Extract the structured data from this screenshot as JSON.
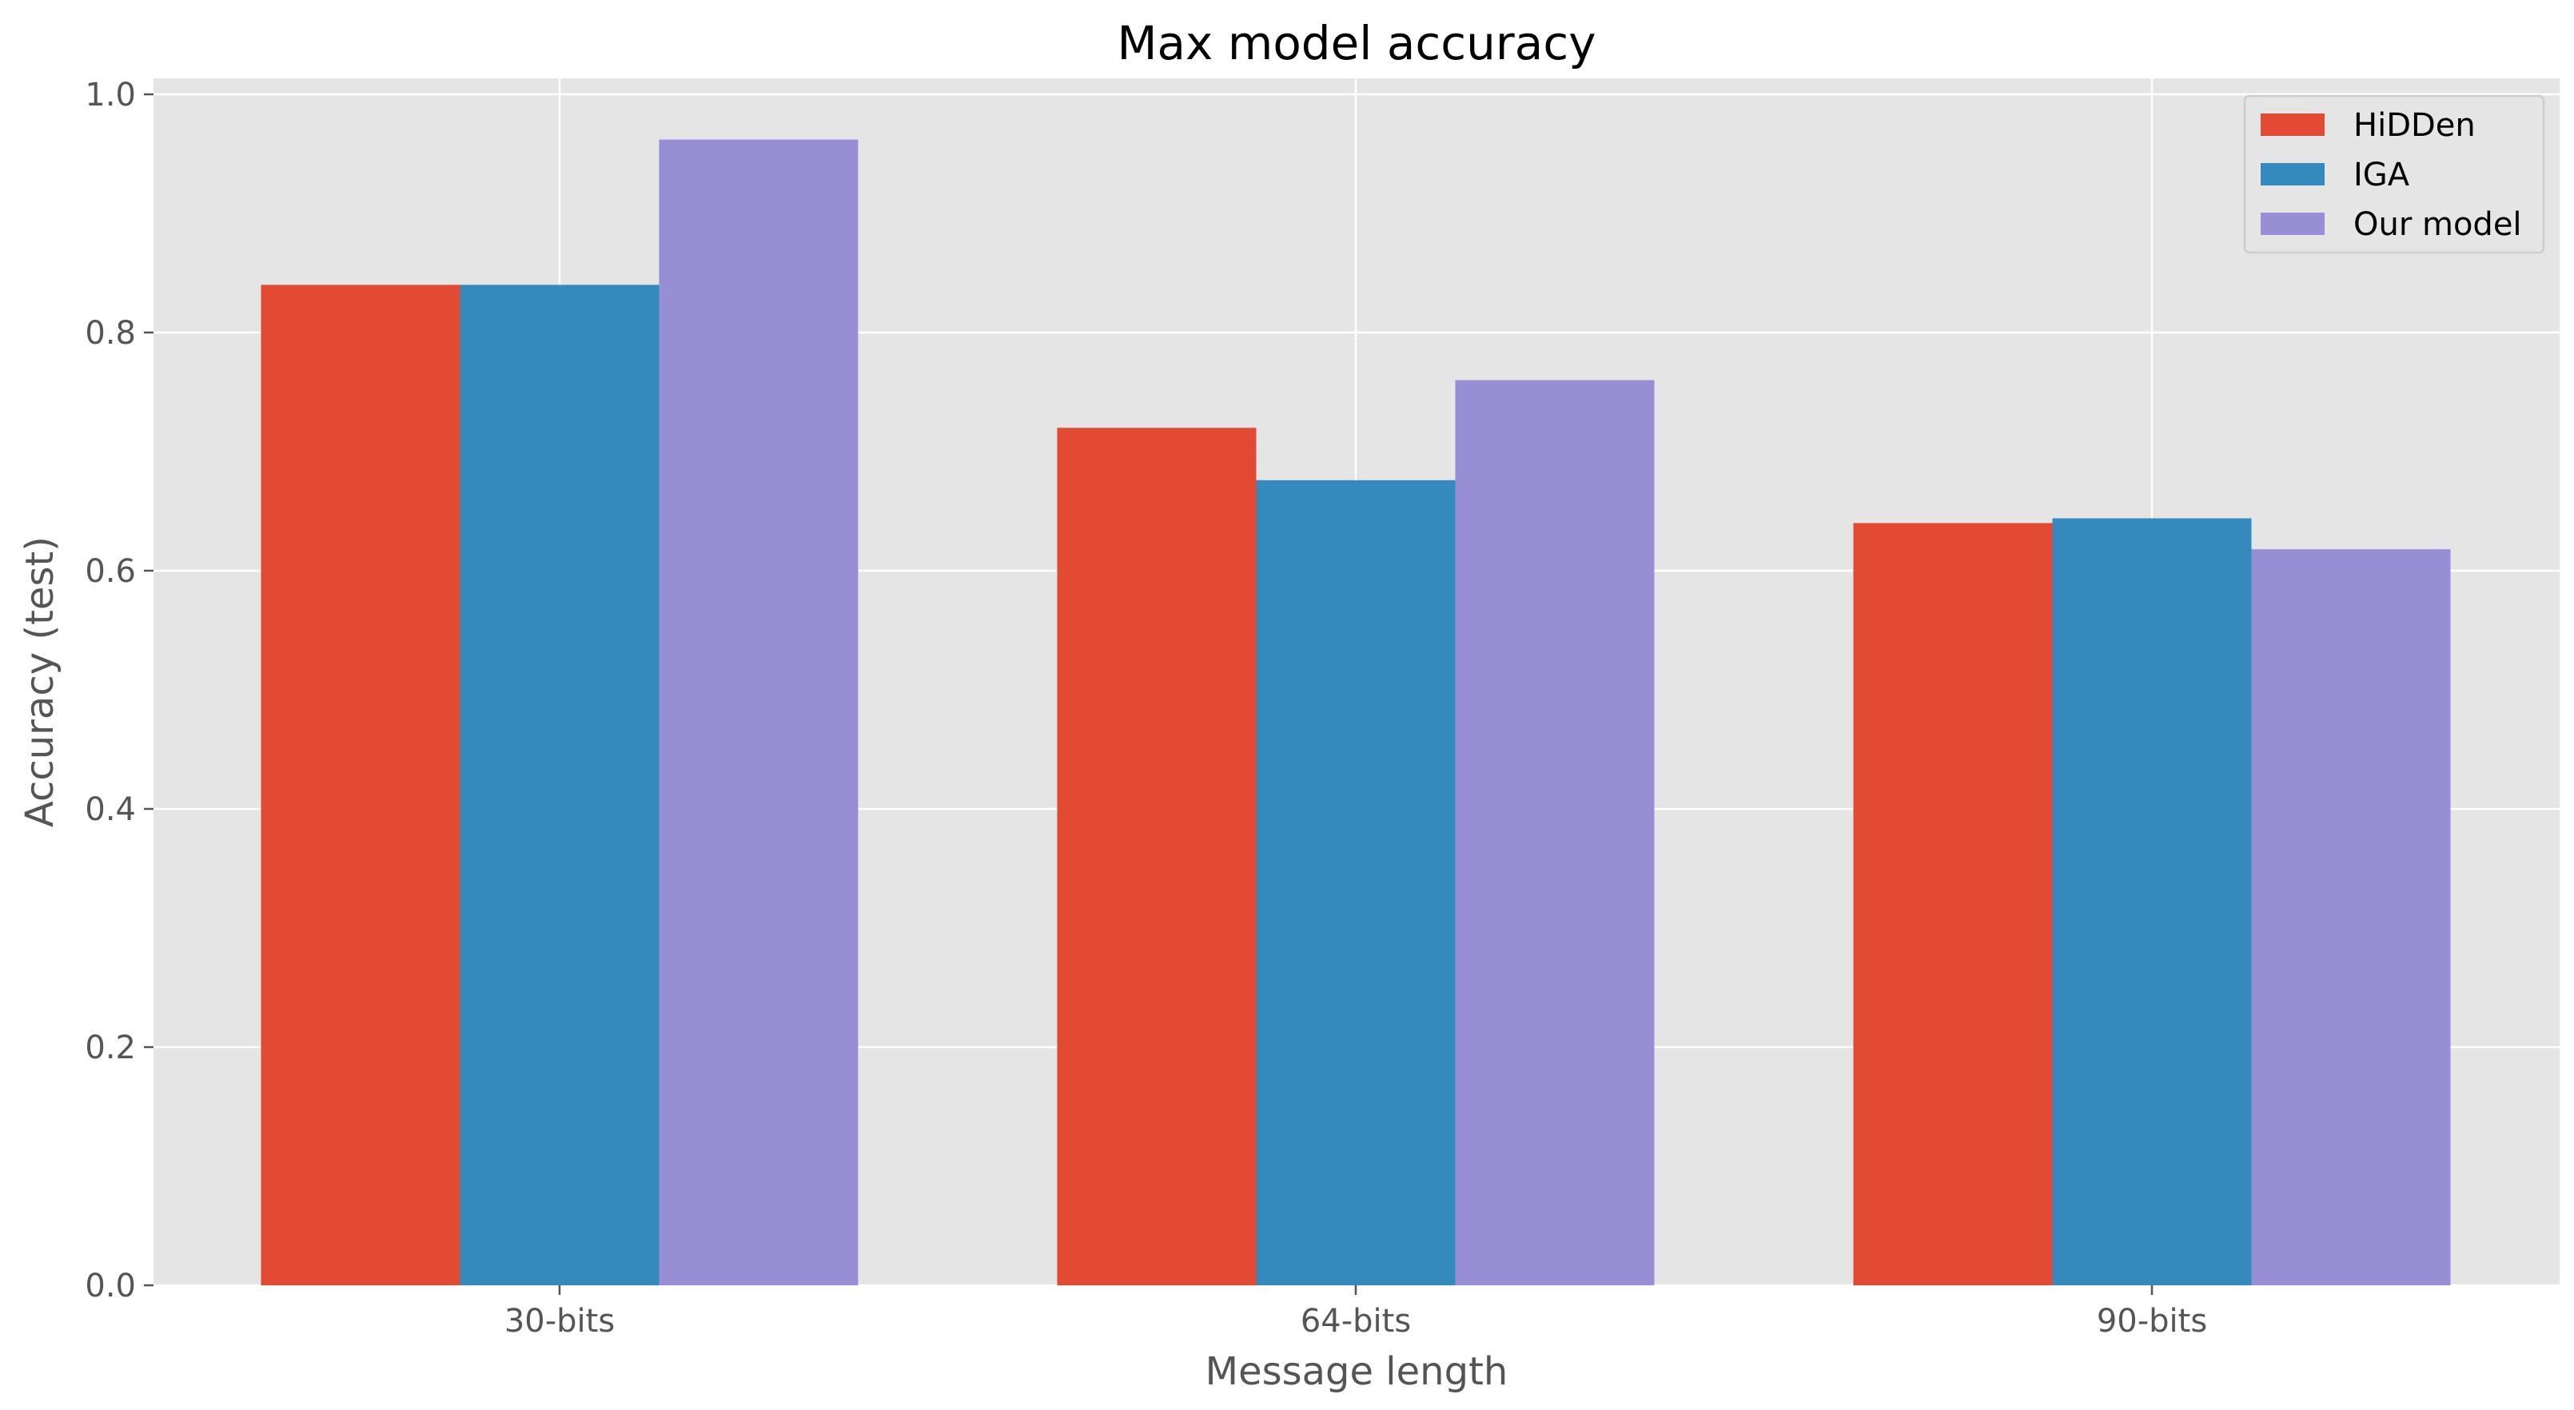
{
  "chart_data": {
    "type": "bar",
    "title": "Max model accuracy",
    "xlabel": "Message length",
    "ylabel": "Accuracy (test)",
    "categories": [
      "30-bits",
      "64-bits",
      "90-bits"
    ],
    "series": [
      {
        "name": "HiDDen",
        "values": [
          0.84,
          0.72,
          0.64
        ],
        "color": "#E24A33"
      },
      {
        "name": "IGA",
        "values": [
          0.84,
          0.676,
          0.644
        ],
        "color": "#348ABD"
      },
      {
        "name": "Our model",
        "values": [
          0.962,
          0.76,
          0.618
        ],
        "color": "#988ED5"
      }
    ],
    "ylim": [
      0,
      1.0
    ],
    "yticks": [
      "0.0",
      "0.2",
      "0.4",
      "0.6",
      "0.8",
      "1.0"
    ],
    "grid": true,
    "legend_position": "top-right",
    "background_color": "#E5E5E5"
  }
}
